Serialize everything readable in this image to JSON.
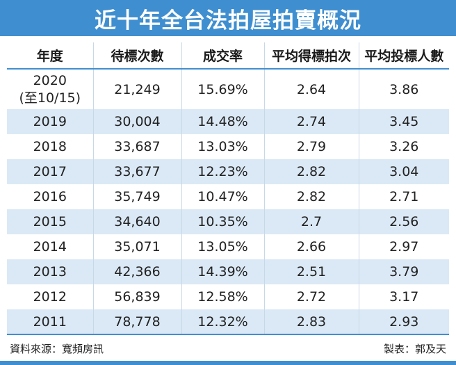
{
  "title": "近十年全台法拍屋拍賣概況",
  "table": {
    "headers": [
      "年度",
      "待標次數",
      "成交率",
      "平均得標拍次",
      "平均投標人數"
    ],
    "rows": [
      {
        "year": "2020",
        "year_note": "(至10/15)",
        "pending": "21,249",
        "rate": "15.69%",
        "avg_rounds": "2.64",
        "avg_bidders": "3.86"
      },
      {
        "year": "2019",
        "year_note": "",
        "pending": "30,004",
        "rate": "14.48%",
        "avg_rounds": "2.74",
        "avg_bidders": "3.45"
      },
      {
        "year": "2018",
        "year_note": "",
        "pending": "33,687",
        "rate": "13.03%",
        "avg_rounds": "2.79",
        "avg_bidders": "3.26"
      },
      {
        "year": "2017",
        "year_note": "",
        "pending": "33,677",
        "rate": "12.23%",
        "avg_rounds": "2.82",
        "avg_bidders": "3.04"
      },
      {
        "year": "2016",
        "year_note": "",
        "pending": "35,749",
        "rate": "10.47%",
        "avg_rounds": "2.82",
        "avg_bidders": "2.71"
      },
      {
        "year": "2015",
        "year_note": "",
        "pending": "34,640",
        "rate": "10.35%",
        "avg_rounds": "2.7",
        "avg_bidders": "2.56"
      },
      {
        "year": "2014",
        "year_note": "",
        "pending": "35,071",
        "rate": "13.05%",
        "avg_rounds": "2.66",
        "avg_bidders": "2.97"
      },
      {
        "year": "2013",
        "year_note": "",
        "pending": "42,366",
        "rate": "14.39%",
        "avg_rounds": "2.51",
        "avg_bidders": "3.79"
      },
      {
        "year": "2012",
        "year_note": "",
        "pending": "56,839",
        "rate": "12.58%",
        "avg_rounds": "2.72",
        "avg_bidders": "3.17"
      },
      {
        "year": "2011",
        "year_note": "",
        "pending": "78,778",
        "rate": "12.32%",
        "avg_rounds": "2.83",
        "avg_bidders": "2.93"
      }
    ]
  },
  "footer": {
    "source": "資料來源：寬頻房訊",
    "credit": "製表：郭及天"
  },
  "colors": {
    "accent": "#3f8fd0",
    "stripe": "#dbe9f6"
  }
}
